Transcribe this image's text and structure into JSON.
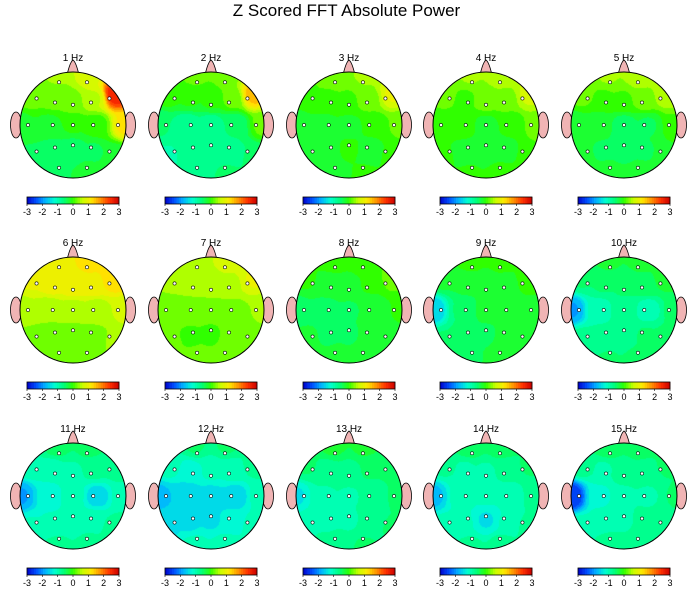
{
  "title": "Z Scored FFT Absolute Power",
  "colors": {
    "scale": [
      "#0000c8",
      "#0050ff",
      "#00b4ff",
      "#00ffd0",
      "#00ff78",
      "#30ff00",
      "#c8ff00",
      "#ffe800",
      "#ff9000",
      "#ff3000",
      "#c80000"
    ],
    "head_outline": "#000000",
    "ear_fill": "#f0b4b4",
    "nose_fill": "#f0b4b4",
    "electrode_fill": "#ffffff"
  },
  "chart_data": {
    "type": "heatmap",
    "title": "Z Scored FFT Absolute Power",
    "colorbar": {
      "range": [
        -3,
        3
      ],
      "tick_labels": [
        "-3",
        "-2",
        "-1",
        "0",
        "1",
        "2",
        "3"
      ]
    },
    "electrodes": [
      "Fp1",
      "Fp2",
      "F7",
      "F3",
      "Fz",
      "F4",
      "F8",
      "T3",
      "C3",
      "Cz",
      "C4",
      "T4",
      "T5",
      "P3",
      "Pz",
      "P4",
      "T6",
      "O1",
      "O2"
    ],
    "electrode_positions": {
      "Fp1": [
        -0.31,
        0.95
      ],
      "Fp2": [
        0.31,
        0.95
      ],
      "F7": [
        -0.81,
        0.59
      ],
      "F3": [
        -0.4,
        0.5
      ],
      "Fz": [
        0.0,
        0.45
      ],
      "F4": [
        0.4,
        0.5
      ],
      "F8": [
        0.81,
        0.59
      ],
      "T3": [
        -1.0,
        0.0
      ],
      "C3": [
        -0.45,
        0.0
      ],
      "Cz": [
        0.0,
        0.0
      ],
      "C4": [
        0.45,
        0.0
      ],
      "T4": [
        1.0,
        0.0
      ],
      "T5": [
        -0.81,
        -0.59
      ],
      "P3": [
        -0.4,
        -0.5
      ],
      "Pz": [
        0.0,
        -0.45
      ],
      "P4": [
        0.4,
        -0.5
      ],
      "T6": [
        0.81,
        -0.59
      ],
      "O1": [
        -0.31,
        -0.95
      ],
      "O2": [
        0.31,
        -0.95
      ]
    },
    "maps": [
      {
        "label": "1 Hz",
        "values": [
          0.4,
          0.8,
          0.3,
          0.2,
          0.3,
          0.6,
          2.6,
          -0.2,
          -0.2,
          -0.1,
          0.0,
          1.2,
          -0.4,
          -0.5,
          -0.5,
          -0.4,
          -0.3,
          -0.4,
          -0.3
        ]
      },
      {
        "label": "2 Hz",
        "values": [
          0.2,
          0.3,
          0.0,
          -0.1,
          -0.1,
          0.2,
          1.5,
          -0.6,
          -0.8,
          -0.8,
          -0.6,
          0.2,
          -0.9,
          -0.8,
          -0.8,
          -0.7,
          -0.6,
          -0.7,
          -0.6
        ]
      },
      {
        "label": "3 Hz",
        "values": [
          0.3,
          0.4,
          0.1,
          0.1,
          0.1,
          0.3,
          0.9,
          -0.3,
          -0.2,
          -0.2,
          -0.1,
          0.2,
          -0.3,
          -0.2,
          -0.1,
          -0.2,
          -0.1,
          -0.2,
          -0.1
        ]
      },
      {
        "label": "4 Hz",
        "values": [
          0.4,
          0.6,
          0.2,
          0.1,
          0.2,
          0.3,
          0.7,
          0.0,
          0.0,
          -0.2,
          -0.1,
          0.3,
          -0.1,
          -0.2,
          -0.3,
          -0.2,
          0.0,
          -0.1,
          0.0
        ]
      },
      {
        "label": "5 Hz",
        "values": [
          0.4,
          0.6,
          0.2,
          0.1,
          0.1,
          0.3,
          0.6,
          -0.3,
          -0.3,
          -0.5,
          -0.4,
          0.1,
          -0.3,
          -0.4,
          -0.5,
          -0.4,
          -0.2,
          -0.2,
          -0.2
        ]
      },
      {
        "label": "6 Hz",
        "values": [
          1.0,
          1.2,
          0.9,
          1.0,
          1.0,
          1.1,
          1.3,
          0.5,
          0.4,
          0.5,
          0.5,
          0.7,
          0.3,
          0.3,
          0.3,
          0.3,
          0.4,
          0.3,
          0.3
        ]
      },
      {
        "label": "7 Hz",
        "values": [
          0.5,
          0.7,
          0.4,
          0.5,
          0.5,
          0.6,
          0.9,
          0.3,
          0.2,
          0.2,
          0.3,
          0.4,
          0.2,
          0.1,
          0.1,
          0.2,
          0.3,
          0.2,
          0.2
        ]
      },
      {
        "label": "8 Hz",
        "values": [
          0.0,
          0.1,
          -0.1,
          -0.2,
          -0.2,
          -0.1,
          0.2,
          -0.5,
          -0.5,
          -0.4,
          -0.3,
          -0.1,
          -0.3,
          -0.4,
          -0.4,
          -0.3,
          -0.2,
          -0.2,
          -0.2
        ]
      },
      {
        "label": "9 Hz",
        "values": [
          0.0,
          0.0,
          -0.3,
          -0.3,
          -0.3,
          -0.2,
          0.0,
          -1.6,
          -0.6,
          -0.3,
          -0.3,
          -0.2,
          -0.6,
          -0.5,
          -0.4,
          -0.3,
          -0.2,
          -0.4,
          -0.2
        ]
      },
      {
        "label": "10 Hz",
        "values": [
          -0.3,
          -0.3,
          -0.6,
          -0.6,
          -0.6,
          -0.4,
          -0.3,
          -1.9,
          -1.0,
          -0.7,
          -1.0,
          -0.5,
          -0.7,
          -0.8,
          -0.8,
          -0.6,
          -0.5,
          -0.6,
          -0.5
        ]
      },
      {
        "label": "11 Hz",
        "values": [
          -0.5,
          -0.5,
          -0.9,
          -1.0,
          -0.9,
          -0.8,
          -0.7,
          -1.9,
          -1.3,
          -1.0,
          -1.5,
          -0.9,
          -1.1,
          -1.1,
          -1.0,
          -0.9,
          -0.8,
          -0.8,
          -0.8
        ]
      },
      {
        "label": "12 Hz",
        "values": [
          -0.6,
          -0.6,
          -1.0,
          -1.2,
          -1.1,
          -1.0,
          -0.8,
          -1.7,
          -1.6,
          -1.5,
          -1.5,
          -0.9,
          -1.4,
          -1.4,
          -1.4,
          -1.3,
          -1.0,
          -1.0,
          -0.9
        ]
      },
      {
        "label": "13 Hz",
        "values": [
          -0.3,
          -0.3,
          -0.6,
          -0.7,
          -0.7,
          -0.6,
          -0.5,
          -1.4,
          -0.9,
          -0.9,
          -0.8,
          -0.5,
          -0.9,
          -0.9,
          -0.9,
          -0.8,
          -0.6,
          -0.7,
          -0.6
        ]
      },
      {
        "label": "14 Hz",
        "values": [
          -0.4,
          -0.4,
          -0.8,
          -0.9,
          -0.9,
          -0.8,
          -0.6,
          -1.7,
          -1.0,
          -1.1,
          -1.0,
          -0.7,
          -1.0,
          -1.1,
          -1.4,
          -1.1,
          -0.8,
          -0.8,
          -0.7
        ]
      },
      {
        "label": "15 Hz",
        "values": [
          -0.4,
          -0.4,
          -0.7,
          -0.9,
          -0.8,
          -0.7,
          -0.6,
          -2.6,
          -1.2,
          -0.9,
          -0.9,
          -0.6,
          -1.0,
          -0.9,
          -0.9,
          -0.8,
          -0.7,
          -0.8,
          -0.7
        ]
      }
    ]
  }
}
